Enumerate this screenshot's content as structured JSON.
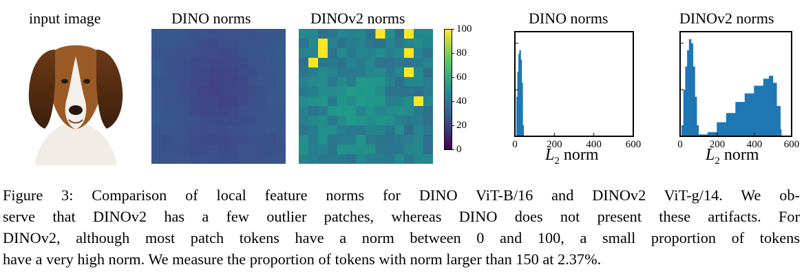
{
  "panels": {
    "input_title": "input image",
    "dino_map_title": "DINO norms",
    "dinov2_map_title": "DINOv2 norms",
    "colorbar_ticks": [
      "100",
      "80",
      "60",
      "40",
      "20",
      "0"
    ],
    "hist_dino_title": "DINO norms",
    "hist_dinov2_title": "DINOv2 norms",
    "xlabel_symbol": "L",
    "xlabel_sub": "2",
    "xlabel_word": " norm"
  },
  "chart_data": [
    {
      "type": "bar",
      "title": "DINO norms",
      "xlabel": "L2 norm",
      "xlim": [
        0,
        600
      ],
      "xticks": [
        "0",
        "200",
        "400",
        "600"
      ],
      "yscale": "log",
      "yticks": [
        "10^-5",
        "10^-3",
        "10^-1"
      ],
      "series": [
        {
          "x": [
            5,
            10,
            15,
            20,
            25,
            30,
            35,
            40
          ],
          "values": [
            1e-05,
            0.0005,
            0.006,
            0.035,
            0.05,
            0.02,
            0.002,
            3e-05
          ]
        }
      ],
      "color": "#1f77b4"
    },
    {
      "type": "bar",
      "title": "DINOv2 norms",
      "xlabel": "L2 norm",
      "xlim": [
        0,
        600
      ],
      "xticks": [
        "0",
        "200",
        "400",
        "600"
      ],
      "yscale": "log",
      "yticks": [
        "10^-5",
        "10^-3",
        "10^-1"
      ],
      "series": [
        {
          "x": [
            10,
            20,
            30,
            40,
            50,
            60,
            70,
            80,
            90,
            100,
            150,
            200,
            250,
            300,
            350,
            400,
            450,
            480,
            500,
            520,
            540
          ],
          "values": [
            3e-05,
            0.001,
            0.01,
            0.05,
            0.15,
            0.1,
            0.01,
            0.0005,
            3e-05,
            1.2e-05,
            1.5e-05,
            4e-05,
            0.0001,
            0.0003,
            0.0007,
            0.0015,
            0.003,
            0.004,
            0.002,
            0.0002,
            2e-05
          ]
        }
      ],
      "color": "#1f77b4"
    }
  ],
  "caption": [
    "Figure 3: Comparison of local feature norms for DINO ViT-B/16 and DINOv2 ViT-g/14. We ob-",
    "serve that DINOv2 has a few outlier patches, whereas DINO does not present these artifacts. For",
    "DINOv2, although most patch tokens have a norm between 0 and 100, a small proportion of tokens",
    "have a very high norm. We measure the proportion of tokens with norm larger than 150 at 2.37%."
  ]
}
